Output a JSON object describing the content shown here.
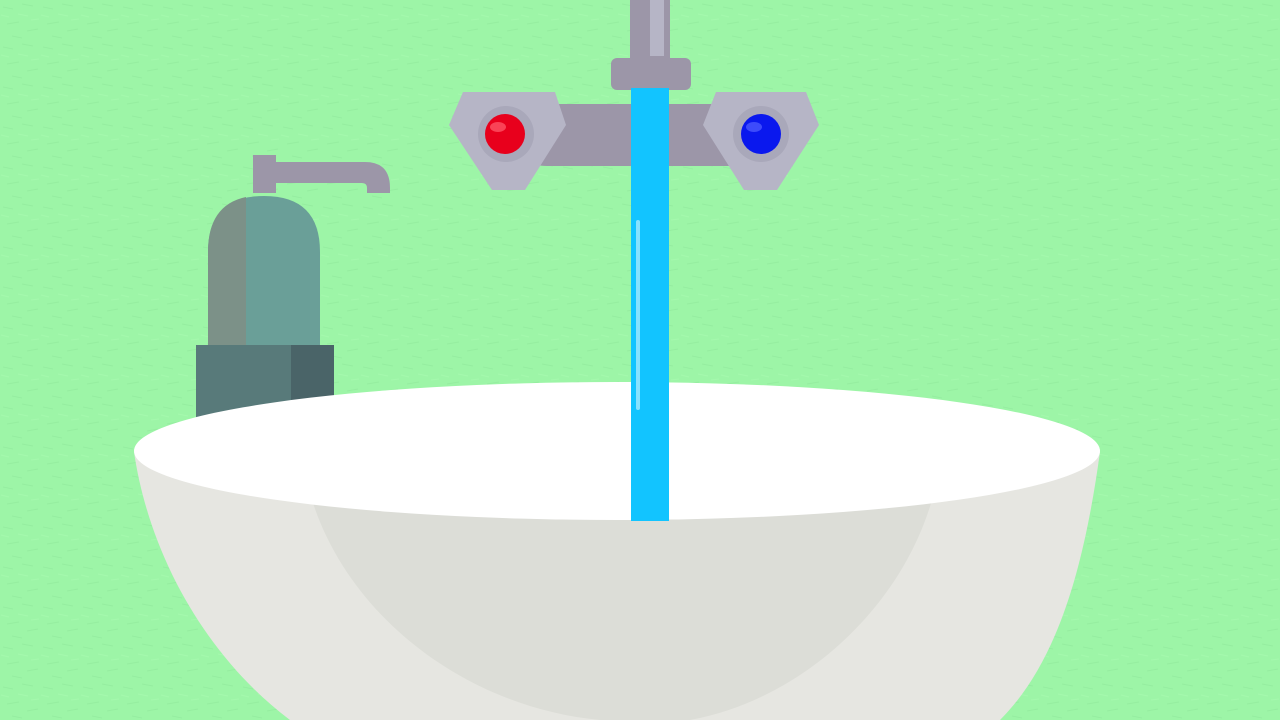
{
  "scene": {
    "subject": "bathroom-sink-with-running-tap",
    "colors": {
      "wall": "#9df5a7",
      "wall_texture": "#8fe89a",
      "basin_rim": "#ffffff",
      "basin_outer": "#e6e6e1",
      "basin_inner": "#dcddd7",
      "faucet_metal": "#9c96a8",
      "faucet_metal_dark": "#8d889a",
      "handle_light": "#b6b5c6",
      "hot_indicator": "#e8001c",
      "hot_indicator_shine": "#ff5a6a",
      "cold_indicator": "#0a18ee",
      "cold_indicator_shine": "#4f5cff",
      "water": "#12c4ff",
      "water_highlight": "#b9f0ff",
      "soap_bottle": "#6a9f98",
      "soap_bottle_shade": "#7c9188",
      "soap_base": "#587a7a",
      "soap_base_shade": "#4a6468",
      "soap_pump": "#9c96a8"
    },
    "icons": {
      "hot_handle": "hot-water-handle-icon",
      "cold_handle": "cold-water-handle-icon",
      "soap": "soap-dispenser-icon"
    }
  }
}
